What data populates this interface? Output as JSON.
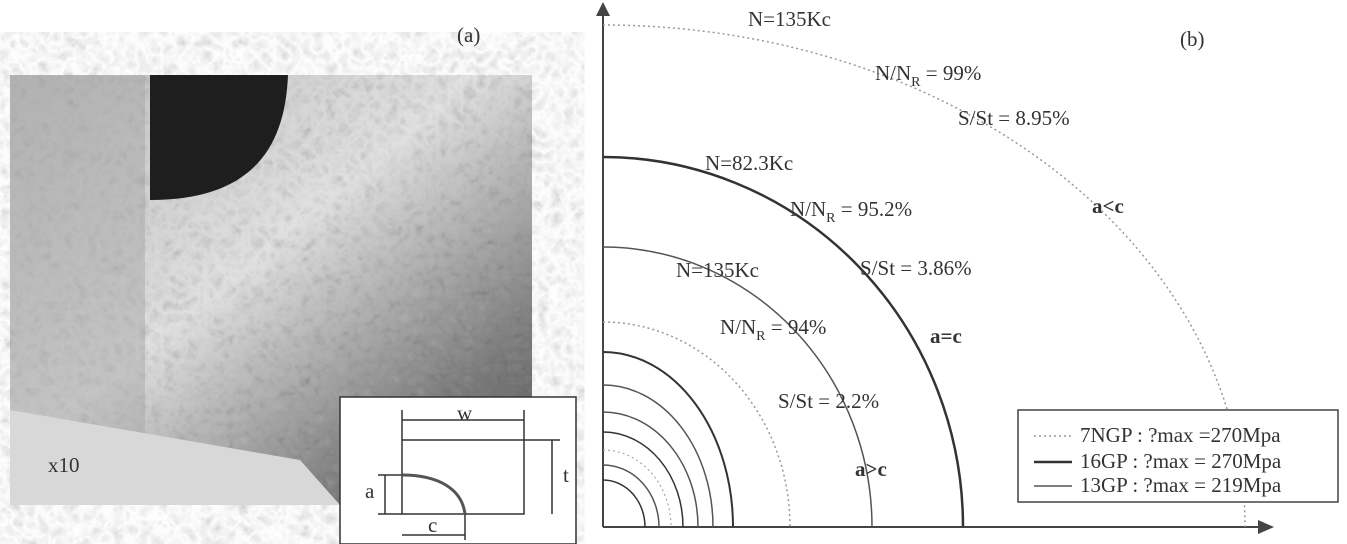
{
  "panel_a": {
    "label": "(a)",
    "magnification": "x10",
    "inset": {
      "width_label": "w",
      "thickness_label": "t",
      "depth_label": "a",
      "length_label": "c"
    }
  },
  "panel_b": {
    "label": "(b)",
    "annotations": [
      {
        "text": "N=135Kc"
      },
      {
        "main": "N/N",
        "sub": "R",
        "rest": " = 99%"
      },
      {
        "text": "S/St = 8.95%"
      },
      {
        "text": "a<c"
      },
      {
        "text": "N=82.3Kc"
      },
      {
        "main": "N/N",
        "sub": "R",
        "rest": " = 95.2%"
      },
      {
        "text": "S/St = 3.86%"
      },
      {
        "text": "a=c"
      },
      {
        "text": "N=135Kc"
      },
      {
        "main": "N/N",
        "sub": "R",
        "rest": " = 94%"
      },
      {
        "text": "S/St = 2.2%"
      },
      {
        "text": "a>c"
      }
    ],
    "legend": [
      "7NGP : ?max =270Mpa",
      "16GP : ?max = 270Mpa",
      "13GP : ?max = 219Mpa"
    ]
  }
}
